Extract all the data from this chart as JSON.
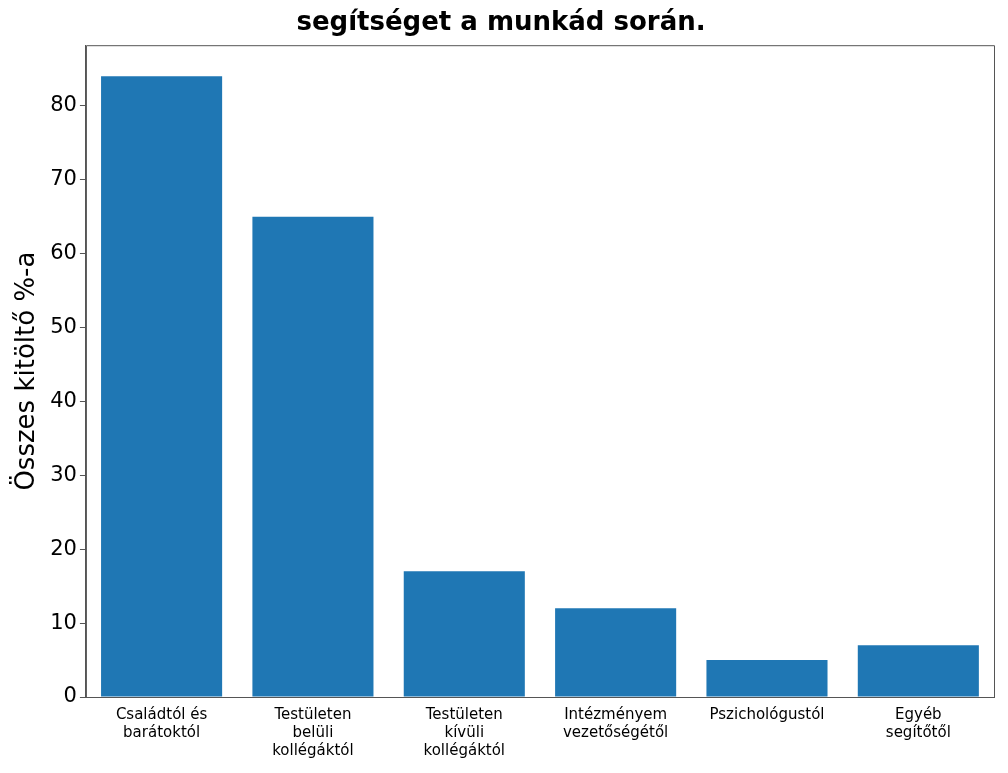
{
  "chart_data": {
    "type": "bar",
    "title": "segítséget a munkád során.",
    "ylabel": "Összes kitöltő %-a",
    "categories": [
      "Családtól és barátoktól",
      "Testületen belüli kollégáktól",
      "Testületen kívüli kollégáktól",
      "Intézményem vezetőségétől",
      "Pszichológustól",
      "Egyéb segítőtől"
    ],
    "values": [
      84,
      65,
      17,
      12,
      5,
      7
    ],
    "color": "#1f77b4",
    "ylim": [
      0,
      88.2
    ],
    "yticks": [
      0,
      10,
      20,
      30,
      40,
      50,
      60,
      70,
      80
    ],
    "grid": false,
    "legend": false
  }
}
